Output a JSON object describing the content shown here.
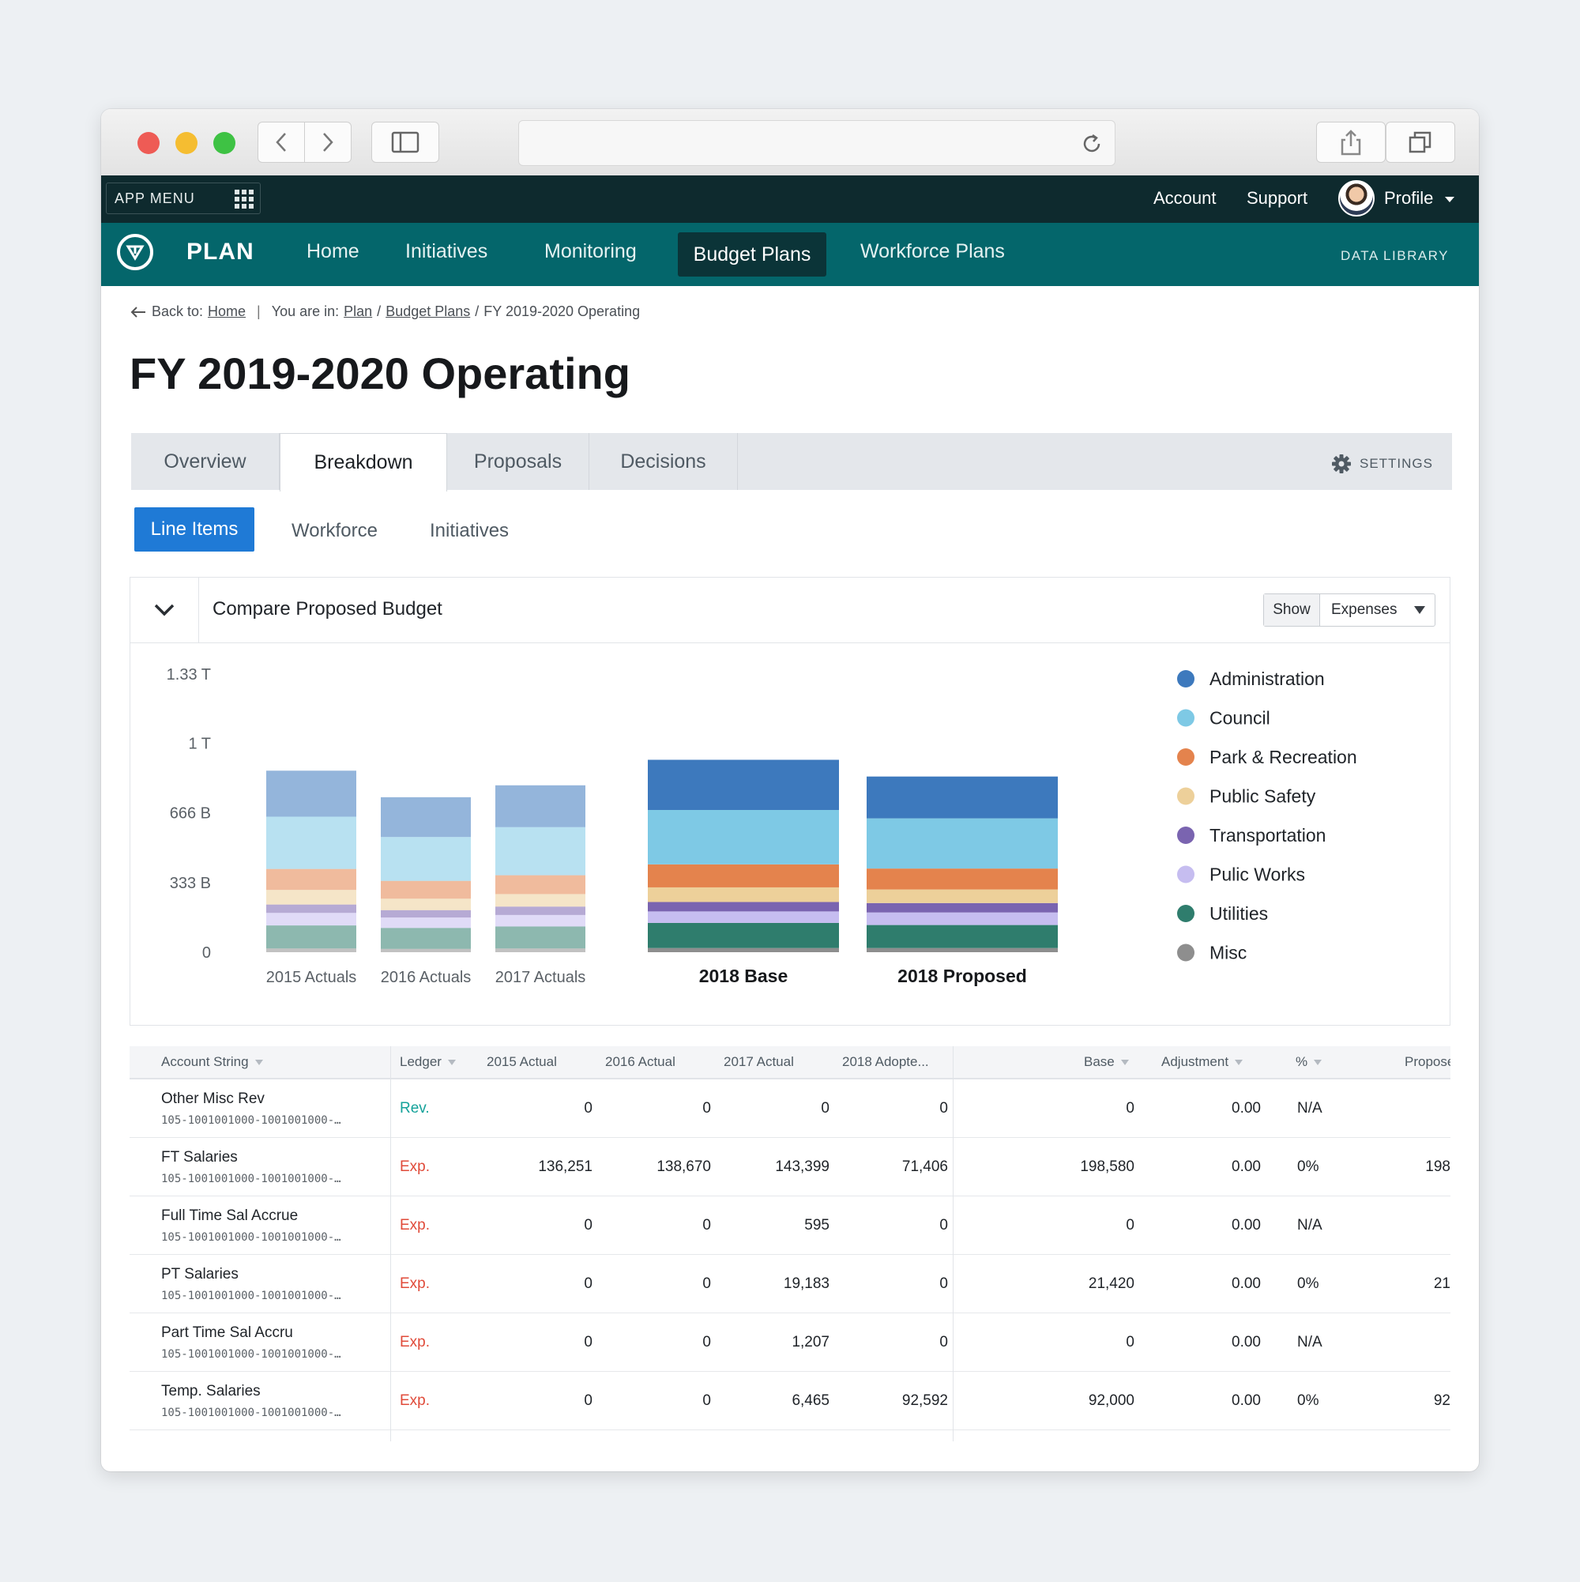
{
  "topbar": {
    "app_menu": "APP MENU",
    "links": [
      "Account",
      "Support"
    ],
    "profile": "Profile"
  },
  "nav": {
    "brand": "PLAN",
    "items": [
      "Home",
      "Initiatives",
      "Monitoring",
      "Budget Plans",
      "Workforce Plans"
    ],
    "active": "Budget Plans",
    "data_library": "DATA LIBRARY"
  },
  "breadcrumb": {
    "back_prefix": "Back to:",
    "back_link": "Home",
    "you_are_in": "You are in:",
    "path_links": [
      "Plan",
      "Budget Plans"
    ],
    "current": "FY 2019-2020 Operating"
  },
  "page_title": "FY 2019-2020 Operating",
  "tabs": [
    "Overview",
    "Breakdown",
    "Proposals",
    "Decisions"
  ],
  "active_tab": "Breakdown",
  "settings_label": "SETTINGS",
  "subtabs": [
    "Line Items",
    "Workforce",
    "Initiatives"
  ],
  "active_subtab": "Line Items",
  "panel": {
    "title": "Compare Proposed Budget",
    "show_label": "Show",
    "show_value": "Expenses"
  },
  "chart_data": {
    "type": "bar",
    "stacked": true,
    "y_tick_labels": [
      "0",
      "333 B",
      "666 B",
      "1 T",
      "1.33 T"
    ],
    "y_ticks": [
      0,
      333,
      666,
      1000,
      1330
    ],
    "ylim": [
      0,
      1330
    ],
    "unit": "billions",
    "categories": [
      "2015 Actuals",
      "2016 Actuals",
      "2017 Actuals",
      "2018 Base",
      "2018 Proposed"
    ],
    "emphasized_categories": [
      "2018 Base",
      "2018 Proposed"
    ],
    "legend_position": "right",
    "series": [
      {
        "name": "Misc",
        "color": "#8e8e8e",
        "values": [
          18,
          16,
          18,
          20,
          20
        ]
      },
      {
        "name": "Utilities",
        "color": "#2f7d6d",
        "values": [
          110,
          100,
          105,
          120,
          110
        ]
      },
      {
        "name": "Pulic Works",
        "color": "#c6bdf0",
        "values": [
          60,
          50,
          55,
          55,
          60
        ]
      },
      {
        "name": "Transportation",
        "color": "#7a64b0",
        "values": [
          40,
          35,
          40,
          45,
          45
        ]
      },
      {
        "name": "Public Safety",
        "color": "#edd09a",
        "values": [
          70,
          55,
          60,
          70,
          65
        ]
      },
      {
        "name": "Park & Recreation",
        "color": "#e4834d",
        "values": [
          100,
          85,
          90,
          110,
          100
        ]
      },
      {
        "name": "Council",
        "color": "#7ec9e5",
        "values": [
          250,
          210,
          230,
          260,
          240
        ]
      },
      {
        "name": "Administration",
        "color": "#3d79bd",
        "values": [
          220,
          190,
          200,
          240,
          200
        ]
      }
    ]
  },
  "table": {
    "headers": [
      "Account String",
      "Ledger",
      "2015 Actual",
      "2016 Actual",
      "2017 Actual",
      "2018 Adopte...",
      "Base",
      "Adjustment",
      "%",
      "Propose"
    ],
    "ledger_colors": {
      "Rev.": "#14a29a",
      "Exp.": "#e04b3a"
    },
    "rows": [
      {
        "account": "Other Misc Rev",
        "code": "105-1001001000-1001001000-…",
        "ledger": "Rev.",
        "a2015": "0",
        "a2016": "0",
        "a2017": "0",
        "a2018": "0",
        "base": "0",
        "adjustment": "0.00",
        "pct": "N/A",
        "proposed": ""
      },
      {
        "account": "FT Salaries",
        "code": "105-1001001000-1001001000-…",
        "ledger": "Exp.",
        "a2015": "136,251",
        "a2016": "138,670",
        "a2017": "143,399",
        "a2018": "71,406",
        "base": "198,580",
        "adjustment": "0.00",
        "pct": "0%",
        "proposed": "198"
      },
      {
        "account": "Full Time Sal Accrue",
        "code": "105-1001001000-1001001000-…",
        "ledger": "Exp.",
        "a2015": "0",
        "a2016": "0",
        "a2017": "595",
        "a2018": "0",
        "base": "0",
        "adjustment": "0.00",
        "pct": "N/A",
        "proposed": ""
      },
      {
        "account": "PT Salaries",
        "code": "105-1001001000-1001001000-…",
        "ledger": "Exp.",
        "a2015": "0",
        "a2016": "0",
        "a2017": "19,183",
        "a2018": "0",
        "base": "21,420",
        "adjustment": "0.00",
        "pct": "0%",
        "proposed": "21"
      },
      {
        "account": "Part Time Sal Accru",
        "code": "105-1001001000-1001001000-…",
        "ledger": "Exp.",
        "a2015": "0",
        "a2016": "0",
        "a2017": "1,207",
        "a2018": "0",
        "base": "0",
        "adjustment": "0.00",
        "pct": "N/A",
        "proposed": ""
      },
      {
        "account": "Temp. Salaries",
        "code": "105-1001001000-1001001000-…",
        "ledger": "Exp.",
        "a2015": "0",
        "a2016": "0",
        "a2017": "6,465",
        "a2018": "92,592",
        "base": "92,000",
        "adjustment": "0.00",
        "pct": "0%",
        "proposed": "92"
      }
    ]
  }
}
